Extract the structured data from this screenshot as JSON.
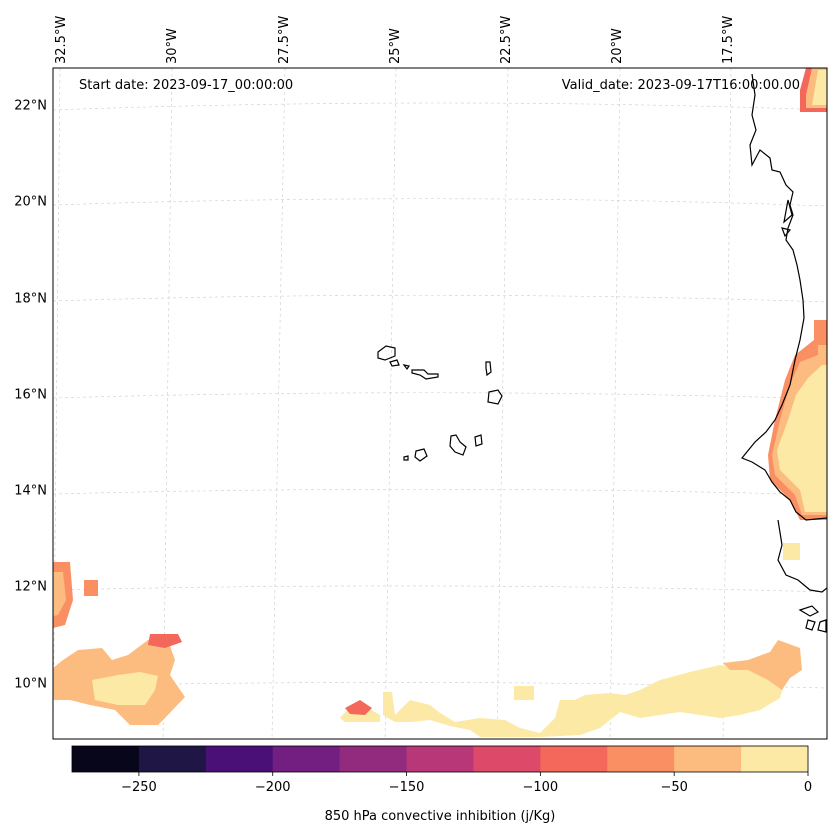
{
  "map": {
    "start_date_label": "Start date: 2023-09-17_00:00:00",
    "valid_date_label": "Valid_date: 2023-09-17T16:00:00.00",
    "lat_labels": [
      "22°N",
      "20°N",
      "18°N",
      "16°N",
      "14°N",
      "12°N",
      "10°N"
    ],
    "lon_labels": [
      "32.5°W",
      "30°W",
      "27.5°W",
      "25°W",
      "22.5°W",
      "20°W",
      "17.5°W"
    ]
  },
  "colorbar": {
    "label": "850 hPa convective inhibition (j/Kg)",
    "tick_labels": [
      "−250",
      "−200",
      "−150",
      "−100",
      "−50",
      "0"
    ],
    "tick_values": [
      -250,
      -200,
      -150,
      -100,
      -50,
      0
    ],
    "range": [
      -275,
      0
    ],
    "bins": [
      {
        "from": -275,
        "to": -250,
        "color": "#07061a"
      },
      {
        "from": -250,
        "to": -225,
        "color": "#1f1646"
      },
      {
        "from": -225,
        "to": -200,
        "color": "#4a1077"
      },
      {
        "from": -200,
        "to": -175,
        "color": "#721f81"
      },
      {
        "from": -175,
        "to": -150,
        "color": "#922b7e"
      },
      {
        "from": -150,
        "to": -125,
        "color": "#b73779"
      },
      {
        "from": -125,
        "to": -100,
        "color": "#dd4a69"
      },
      {
        "from": -100,
        "to": -75,
        "color": "#f4685c"
      },
      {
        "from": -75,
        "to": -50,
        "color": "#fb8f64"
      },
      {
        "from": -50,
        "to": -25,
        "color": "#fdbc7f"
      },
      {
        "from": -25,
        "to": 0,
        "color": "#fce9a5"
      }
    ]
  },
  "field_colors": {
    "light": "#fce9a5",
    "mid": "#fdbc7f",
    "orange": "#fb8f64",
    "red": "#f4685c"
  }
}
